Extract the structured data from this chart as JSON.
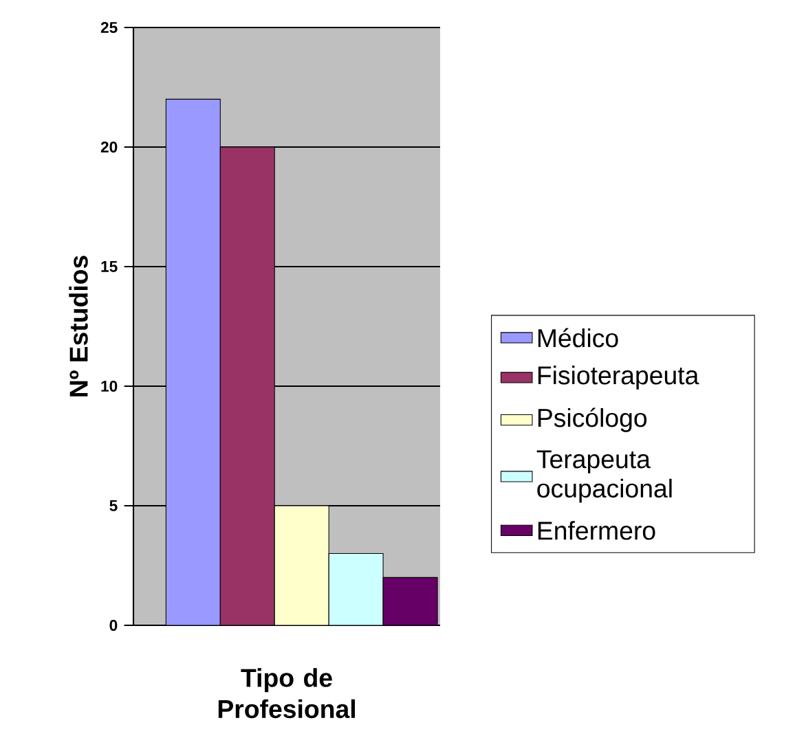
{
  "chart_data": {
    "type": "bar",
    "xlabel": "Tipo de Profesional",
    "ylabel": "Nº Estudios",
    "categories": [
      null
    ],
    "series": [
      {
        "name": "Médico",
        "color": "#9999ff",
        "values": [
          22
        ]
      },
      {
        "name": "Fisioterapeuta",
        "color": "#993366",
        "values": [
          20
        ]
      },
      {
        "name": "Psicólogo",
        "color": "#ffffcc",
        "values": [
          5
        ]
      },
      {
        "name": "Terapeuta ocupacional",
        "color": "#ccffff",
        "values": [
          3
        ]
      },
      {
        "name": "Enfermero",
        "color": "#660066",
        "values": [
          2
        ]
      }
    ],
    "ylim": [
      0,
      25
    ],
    "yticks": [
      0,
      5,
      10,
      15,
      20,
      25
    ],
    "grid": "y",
    "legend": "right"
  }
}
